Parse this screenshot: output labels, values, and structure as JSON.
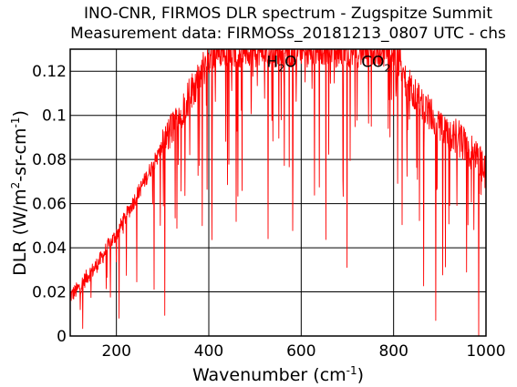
{
  "chart_data": {
    "type": "line",
    "title": "INO-CNR, FIRMOS DLR spectrum - Zugspitze Summit",
    "subtitle": "Measurement data: FIRMOSs_20181213_0807 UTC - chs",
    "xlabel": {
      "text": "Wavenumber (cm",
      "sup": "-1",
      "tail": ")"
    },
    "ylabel": {
      "prefix": "DLR (W/m",
      "sup": "2",
      "suffix": "-sr-cm",
      "sup2": "-1",
      "tail": ")"
    },
    "xlim": [
      100,
      1000
    ],
    "ylim": [
      0,
      0.13
    ],
    "grid": true,
    "x_ticks": [
      200,
      400,
      600,
      800,
      1000
    ],
    "y_ticks": [
      0,
      0.02,
      0.04,
      0.06,
      0.08,
      0.1,
      0.12
    ],
    "x_tick_labels": [
      "200",
      "400",
      "600",
      "800",
      "1000"
    ],
    "y_tick_labels": [
      "0",
      "0.02",
      "0.04",
      "0.06",
      "0.08",
      "0.1",
      "0.12"
    ],
    "series_color": "#ff0000",
    "annotations": [
      {
        "text": "H",
        "sub": "2",
        "tail": "O",
        "x": 525,
        "y": 0.122
      },
      {
        "text": "CO",
        "sub": "2",
        "tail": "",
        "x": 730,
        "y": 0.122
      }
    ],
    "series": [
      {
        "x": [
          100,
          110,
          120,
          130,
          140,
          150,
          160,
          170,
          180,
          190,
          200,
          210,
          220,
          230,
          240,
          250,
          260,
          270,
          280,
          290,
          300,
          310,
          320,
          330,
          340,
          350,
          360,
          370,
          380,
          390,
          400,
          420,
          440,
          460,
          480,
          500,
          520,
          540,
          560,
          580,
          600,
          620,
          640,
          660,
          680,
          700,
          720,
          740,
          760,
          780,
          800,
          820,
          840,
          860,
          880,
          900,
          920,
          940,
          960,
          980,
          1000
        ],
        "y": [
          0.018,
          0.02,
          0.022,
          0.025,
          0.028,
          0.03,
          0.033,
          0.036,
          0.04,
          0.043,
          0.046,
          0.05,
          0.054,
          0.058,
          0.062,
          0.066,
          0.07,
          0.074,
          0.078,
          0.082,
          0.086,
          0.09,
          0.094,
          0.098,
          0.102,
          0.106,
          0.11,
          0.114,
          0.118,
          0.122,
          0.126,
          0.13,
          0.13,
          0.13,
          0.13,
          0.13,
          0.13,
          0.13,
          0.13,
          0.13,
          0.13,
          0.13,
          0.13,
          0.13,
          0.13,
          0.13,
          0.13,
          0.13,
          0.13,
          0.13,
          0.13,
          0.12,
          0.11,
          0.105,
          0.1,
          0.095,
          0.09,
          0.09,
          0.085,
          0.08,
          0.075
        ]
      }
    ]
  }
}
